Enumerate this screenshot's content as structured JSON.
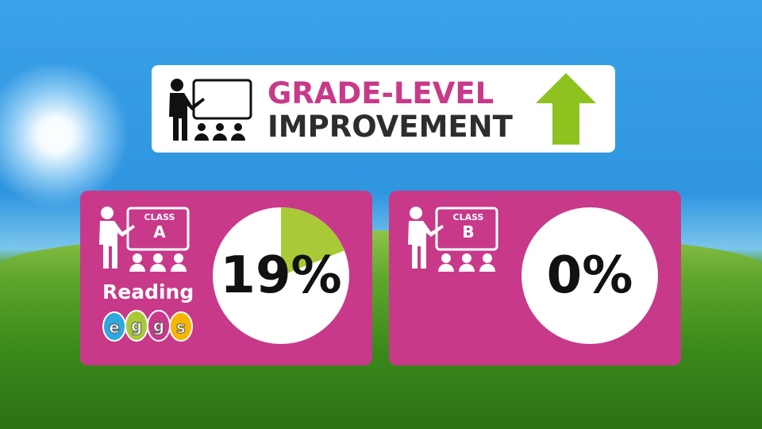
{
  "header": {
    "title_line1": "GRADE-LEVEL",
    "title_line2": "IMPROVEMENT",
    "icon": "teacher-classroom-icon",
    "arrow_icon": "up-arrow-icon",
    "arrow_color": "#8dc21f"
  },
  "cards": [
    {
      "class_label": "CLASS",
      "class_letter": "A",
      "value_percent": 19,
      "value_text": "19%",
      "brand_text": "Reading",
      "brand_letters": [
        "e",
        "g",
        "g",
        "s"
      ],
      "fill_color": "#a9c937"
    },
    {
      "class_label": "CLASS",
      "class_letter": "B",
      "value_percent": 0,
      "value_text": "0%"
    }
  ],
  "colors": {
    "card": "#c8398a",
    "title_pink": "#c8398a",
    "title_dark": "#2d2d2d"
  }
}
